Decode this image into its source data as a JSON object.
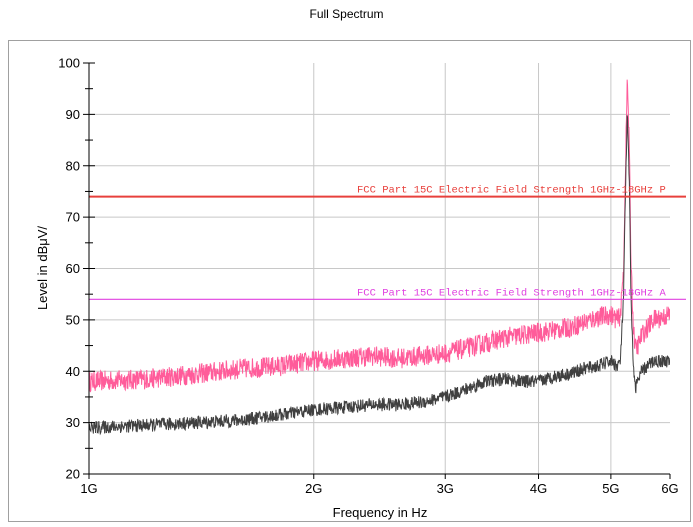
{
  "chart_data": {
    "type": "line",
    "title": "Full Spectrum",
    "xlabel": "Frequency in Hz",
    "ylabel": "Level in dBμV/",
    "x_scale": "log",
    "xlim": [
      1000000000,
      6000000000
    ],
    "ylim": [
      20,
      100
    ],
    "x_ticks": [
      {
        "value": 1000000000,
        "label": "1G"
      },
      {
        "value": 2000000000,
        "label": "2G"
      },
      {
        "value": 3000000000,
        "label": "3G"
      },
      {
        "value": 4000000000,
        "label": "4G"
      },
      {
        "value": 5000000000,
        "label": "5G"
      },
      {
        "value": 6000000000,
        "label": "6G"
      }
    ],
    "y_ticks": [
      20,
      30,
      40,
      50,
      60,
      70,
      80,
      90,
      100
    ],
    "grid": true,
    "limits": [
      {
        "label": "FCC Part 15C Electric Field Strength 1GHz-18GHz P",
        "value": 74,
        "color": "#e8403c"
      },
      {
        "label": "FCC Part 15C Electric Field Strength 1GHz-18GHz A",
        "value": 54,
        "color": "#e040e0"
      }
    ],
    "series": [
      {
        "color": "#ff5c9a",
        "x": [
          1000000000,
          1200000000,
          1400000000,
          1600000000,
          1800000000,
          2000000000,
          2200000000,
          2400000000,
          2600000000,
          2800000000,
          3000000000,
          3200000000,
          3400000000,
          3600000000,
          3800000000,
          4000000000,
          4200000000,
          4400000000,
          4600000000,
          4800000000,
          5000000000,
          5100000000,
          5150000000,
          5200000000,
          5230000000,
          5260000000,
          5290000000,
          5320000000,
          5360000000,
          5400000000,
          5500000000,
          5700000000,
          6000000000
        ],
        "y": [
          38,
          38.5,
          39.5,
          40.5,
          41,
          42,
          42.5,
          43,
          42.5,
          43,
          43.5,
          44.5,
          45.5,
          46.5,
          47,
          47.5,
          48,
          48.5,
          49.5,
          50.5,
          51,
          50,
          51,
          60,
          80,
          97,
          85,
          62,
          48,
          44,
          47,
          50,
          51
        ]
      },
      {
        "color": "#404040",
        "x": [
          1000000000,
          1200000000,
          1400000000,
          1600000000,
          1800000000,
          2000000000,
          2200000000,
          2400000000,
          2600000000,
          2800000000,
          3000000000,
          3200000000,
          3400000000,
          3600000000,
          3800000000,
          4000000000,
          4200000000,
          4400000000,
          4600000000,
          4800000000,
          5000000000,
          5100000000,
          5150000000,
          5200000000,
          5230000000,
          5260000000,
          5290000000,
          5320000000,
          5360000000,
          5400000000,
          5500000000,
          5700000000,
          6000000000
        ],
        "y": [
          29,
          29.5,
          30,
          30.5,
          31.5,
          32.5,
          33,
          33.5,
          33.5,
          34,
          35,
          36.5,
          38,
          38.5,
          38,
          38,
          39,
          39.5,
          40.5,
          41,
          42,
          41,
          42,
          55,
          75,
          90,
          78,
          55,
          40,
          37,
          40,
          42,
          42
        ]
      }
    ]
  }
}
